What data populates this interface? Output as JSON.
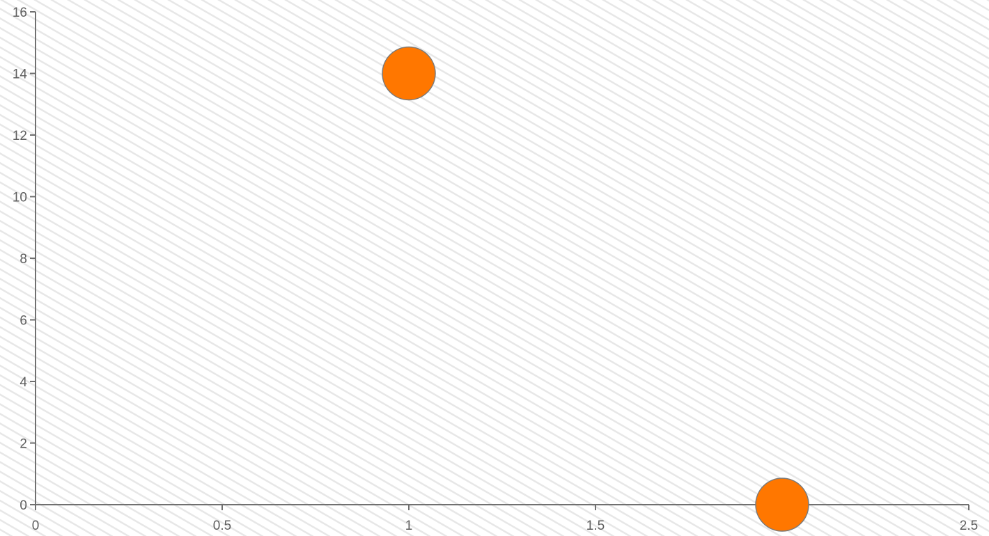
{
  "chart_data": {
    "type": "scatter",
    "title": "",
    "xlabel": "",
    "ylabel": "",
    "xlim": [
      0,
      2.5
    ],
    "ylim": [
      0,
      16
    ],
    "x_ticks": [
      0,
      0.5,
      1,
      1.5,
      2,
      2.5
    ],
    "x_tick_labels": [
      "0",
      "0.5",
      "1",
      "1.5",
      "",
      "2.5"
    ],
    "y_ticks": [
      0,
      2,
      4,
      6,
      8,
      10,
      12,
      14,
      16
    ],
    "y_tick_labels": [
      "0",
      "2",
      "4",
      "6",
      "8",
      "10",
      "12",
      "14",
      "16"
    ],
    "grid": false,
    "legend": "none",
    "series": [
      {
        "color": "#ff7700",
        "points": [
          {
            "x": 1,
            "y": 14
          },
          {
            "x": 2,
            "y": 0
          }
        ]
      }
    ]
  },
  "colors": {
    "axis": "#707070",
    "tick_text": "#5e5e5e",
    "marker_fill": "#ff7700",
    "marker_stroke": "#7a7a7a",
    "background_stripe": "#e7e7e7"
  }
}
